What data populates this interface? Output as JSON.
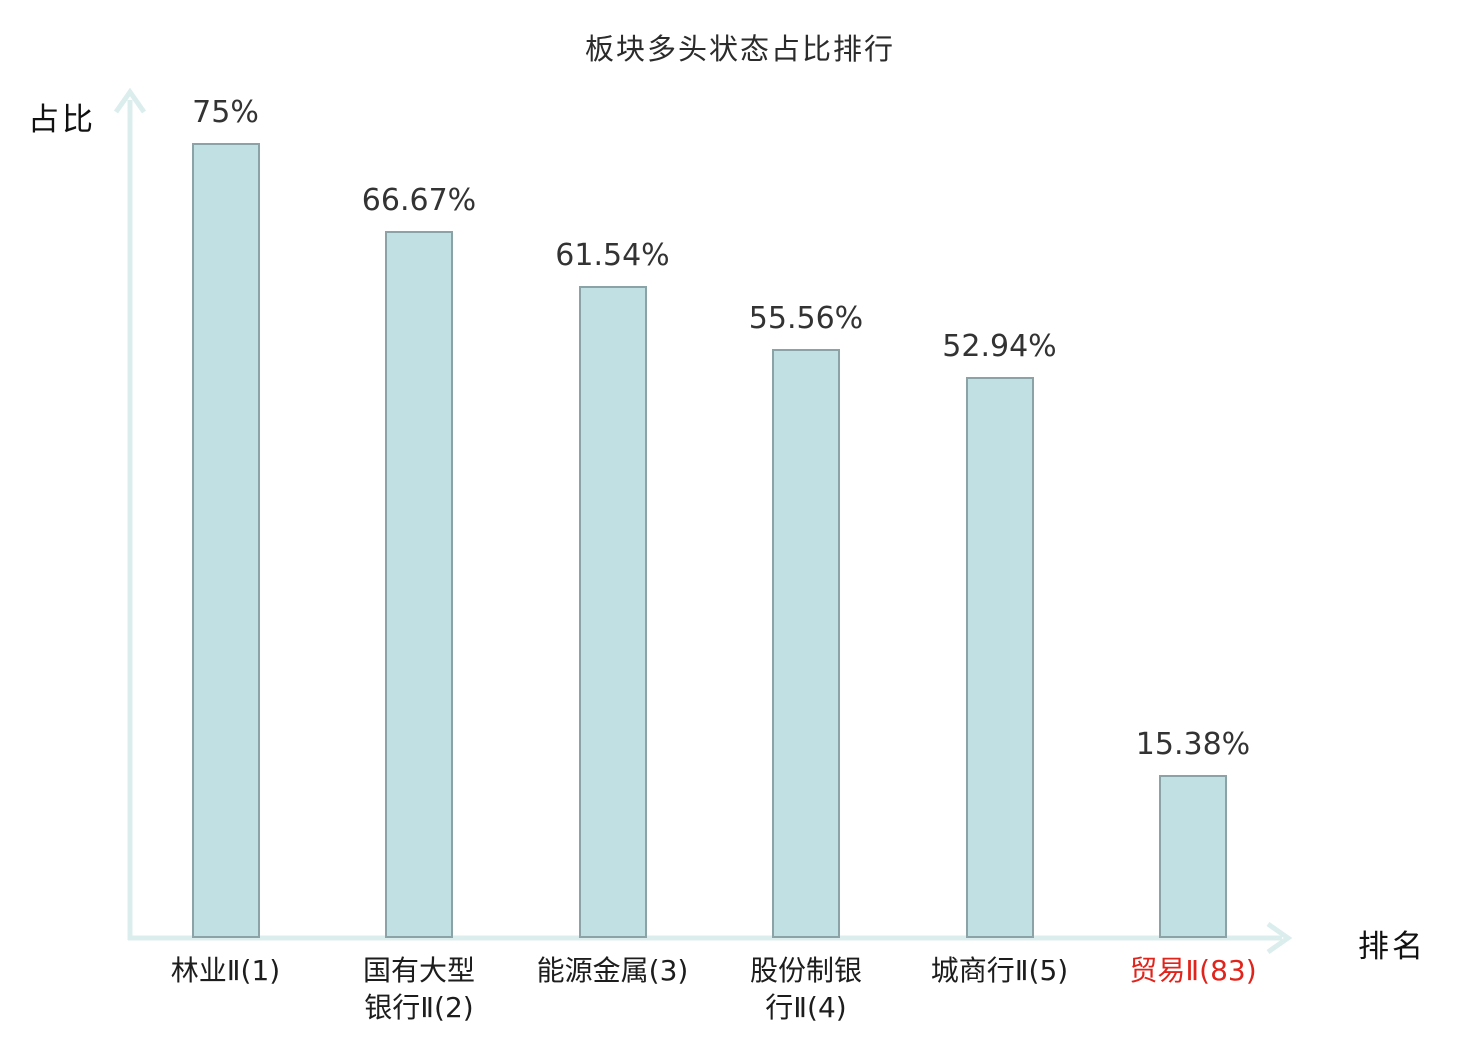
{
  "chart_data": {
    "type": "bar",
    "title": "板块多头状态占比排行",
    "xlabel": "排名",
    "ylabel": "占比",
    "categories": [
      "林业Ⅱ(1)",
      "国有大型\n银行Ⅱ(2)",
      "能源金属(3)",
      "股份制银\n行Ⅱ(4)",
      "城商行Ⅱ(5)",
      "贸易Ⅱ(83)"
    ],
    "values": [
      75,
      66.67,
      61.54,
      55.56,
      52.94,
      15.38
    ],
    "value_labels": [
      "75%",
      "66.67%",
      "61.54%",
      "55.56%",
      "52.94%",
      "15.38%"
    ],
    "ylim": [
      0,
      80
    ],
    "grid": false,
    "legend": false,
    "bar_fill": "#c1e0e4",
    "bar_border": "#8ba3a6",
    "axis_color": "#dcedee",
    "text_color": "#333333",
    "highlight_index": 5,
    "highlight_color": "#e0241c"
  }
}
